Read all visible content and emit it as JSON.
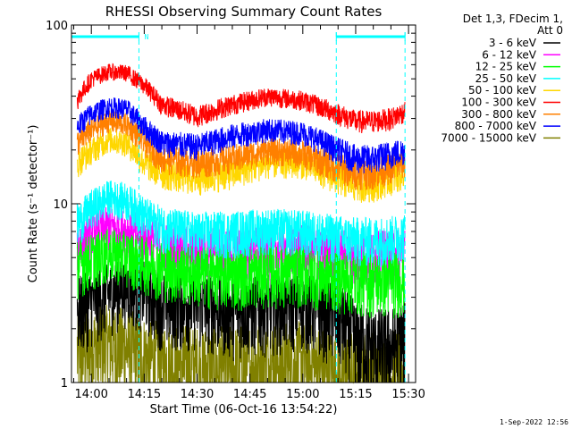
{
  "chart_data": {
    "type": "line",
    "title": "RHESSI Observing Summary Count Rates",
    "xlabel": "Start Time (06-Oct-16 13:54:22)",
    "ylabel": "Count Rate (s⁻¹ detector⁻¹)",
    "x_unit": "minutes after 13:54:22",
    "xlim": [
      "13:54:22",
      "15:32:00"
    ],
    "ylim": [
      1,
      100
    ],
    "y_scale": "log",
    "x_ticks": [
      "14:00",
      "14:15",
      "14:30",
      "14:45",
      "15:00",
      "15:15",
      "15:30"
    ],
    "y_ticks": [
      "1",
      "10",
      "100"
    ],
    "grid": false,
    "legend_header": [
      "Det 1,3, FDecim 1,",
      "Att 0"
    ],
    "legend_position": "right",
    "timestamp": "1-Sep-2022 12:56",
    "flag_bars": [
      {
        "start": "13:54:22",
        "end": "14:13:30",
        "label": "N"
      },
      {
        "start": "15:09:30",
        "end": "15:29:00",
        "label": ""
      }
    ],
    "flag_label": "N",
    "night_markers": [
      "14:13:30",
      "15:09:30",
      "15:29:00"
    ],
    "series": [
      {
        "name": "3 - 6 keV",
        "color": "#000000",
        "x": [
          "13:56",
          "14:00",
          "14:05",
          "14:10",
          "14:15",
          "14:20",
          "14:30",
          "14:40",
          "14:50",
          "15:00",
          "15:10",
          "15:15",
          "15:20",
          "15:25",
          "15:29"
        ],
        "y": [
          2.6,
          2.9,
          3.2,
          3.5,
          3.3,
          2.8,
          2.8,
          2.6,
          2.7,
          2.8,
          2.4,
          1.8,
          1.6,
          1.6,
          1.8
        ]
      },
      {
        "name": "6 - 12 keV",
        "color": "#ff00ff",
        "x": [
          "13:56",
          "14:00",
          "14:05",
          "14:10",
          "14:15",
          "14:20",
          "14:30",
          "14:40",
          "14:50",
          "15:00",
          "15:10",
          "15:15",
          "15:20",
          "15:25",
          "15:29"
        ],
        "y": [
          6.0,
          6.8,
          7.5,
          7.2,
          6.6,
          6.0,
          5.6,
          5.5,
          5.6,
          5.7,
          5.4,
          5.2,
          5.2,
          5.3,
          5.5
        ]
      },
      {
        "name": "12 - 25 keV",
        "color": "#00ff00",
        "x": [
          "13:56",
          "14:00",
          "14:05",
          "14:10",
          "14:15",
          "14:20",
          "14:30",
          "14:40",
          "14:50",
          "15:00",
          "15:10",
          "15:15",
          "15:20",
          "15:25",
          "15:29"
        ],
        "y": [
          4.6,
          5.0,
          5.4,
          5.2,
          4.8,
          4.5,
          4.2,
          4.1,
          4.2,
          4.2,
          4.0,
          3.9,
          3.8,
          3.8,
          3.9
        ]
      },
      {
        "name": "25 - 50 keV",
        "color": "#00ffff",
        "x": [
          "13:56",
          "14:00",
          "14:05",
          "14:10",
          "14:15",
          "14:20",
          "14:30",
          "14:40",
          "14:50",
          "15:00",
          "15:10",
          "15:15",
          "15:20",
          "15:25",
          "15:29"
        ],
        "y": [
          7.8,
          9.5,
          11.0,
          10.5,
          8.6,
          7.5,
          6.9,
          7.0,
          7.3,
          7.1,
          6.6,
          6.4,
          6.4,
          6.5,
          6.8
        ]
      },
      {
        "name": "50 - 100 keV",
        "color": "#ffd700",
        "x": [
          "13:56",
          "14:00",
          "14:05",
          "14:10",
          "14:15",
          "14:20",
          "14:30",
          "14:40",
          "14:50",
          "15:00",
          "15:10",
          "15:15",
          "15:20",
          "15:25",
          "15:29"
        ],
        "y": [
          17,
          20,
          23,
          22,
          17,
          15,
          14,
          15,
          17,
          17,
          14,
          13,
          13,
          14,
          15
        ]
      },
      {
        "name": "100 - 300 keV",
        "color": "#ff0000",
        "x": [
          "13:56",
          "14:00",
          "14:05",
          "14:10",
          "14:15",
          "14:20",
          "14:30",
          "14:40",
          "14:50",
          "15:00",
          "15:10",
          "15:15",
          "15:20",
          "15:25",
          "15:29"
        ],
        "y": [
          38,
          50,
          55,
          54,
          46,
          36,
          31,
          36,
          40,
          38,
          32,
          29,
          29,
          30,
          33
        ]
      },
      {
        "name": "300 - 800 keV",
        "color": "#ff8000",
        "x": [
          "13:56",
          "14:00",
          "14:05",
          "14:10",
          "14:15",
          "14:20",
          "14:30",
          "14:40",
          "14:50",
          "15:00",
          "15:10",
          "15:15",
          "15:20",
          "15:25",
          "15:29"
        ],
        "y": [
          22,
          26,
          29,
          28,
          22,
          18,
          17,
          18,
          20,
          19,
          16,
          15,
          15,
          16,
          17
        ]
      },
      {
        "name": "800 - 7000 keV",
        "color": "#0000ff",
        "x": [
          "13:56",
          "14:00",
          "14:05",
          "14:10",
          "14:15",
          "14:20",
          "14:30",
          "14:40",
          "14:50",
          "15:00",
          "15:10",
          "15:15",
          "15:20",
          "15:25",
          "15:29"
        ],
        "y": [
          27,
          32,
          35,
          34,
          27,
          22,
          21,
          24,
          26,
          25,
          20,
          18,
          18,
          19,
          20
        ]
      },
      {
        "name": "7000 - 15000 keV",
        "color": "#808000",
        "x": [
          "13:56",
          "14:00",
          "14:05",
          "14:10",
          "14:15",
          "14:20",
          "14:30",
          "14:40",
          "14:50",
          "15:00",
          "15:10",
          "15:15",
          "15:20",
          "15:25",
          "15:29"
        ],
        "y": [
          1.5,
          1.6,
          1.7,
          1.6,
          1.4,
          1.3,
          1.2,
          1.2,
          1.3,
          1.3,
          1.1,
          1.1,
          1.1,
          1.1,
          1.2
        ]
      }
    ]
  }
}
